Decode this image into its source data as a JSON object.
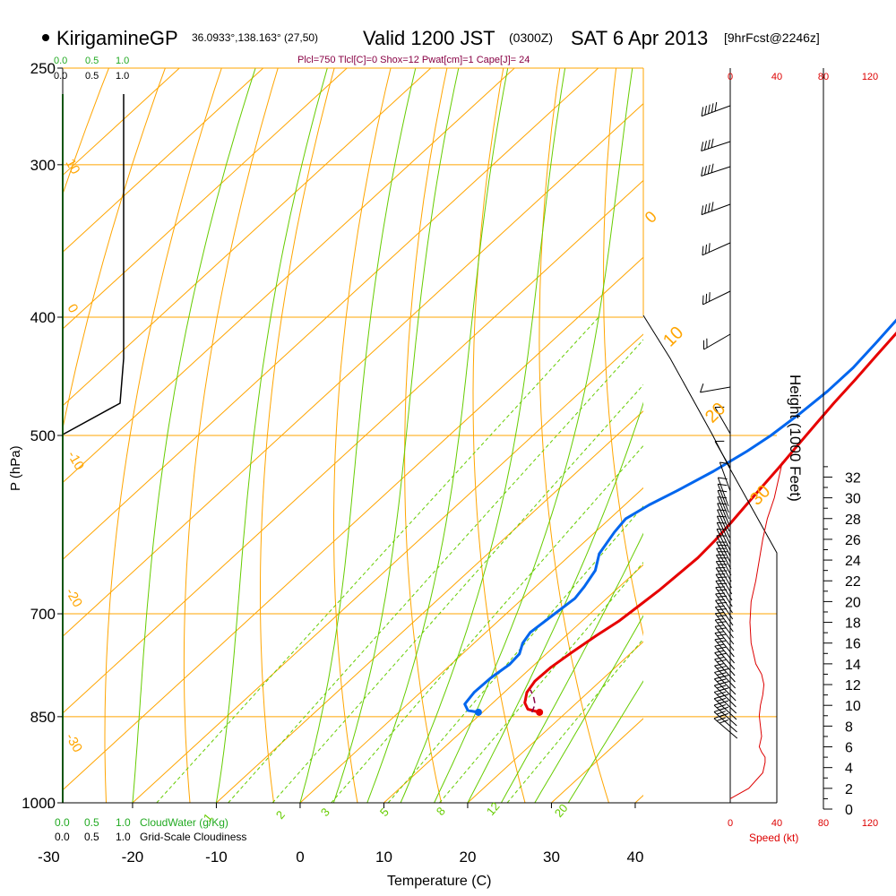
{
  "header": {
    "station": "KirigamineGP",
    "coords": "36.0933°,138.163° (27,50)",
    "valid": "Valid 1200 JST",
    "zulu": "(0300Z)",
    "date": "SAT 6 Apr 2013",
    "forecast": "[9hrFcst@2246z]",
    "indices": "Plcl=750 Tlcl[C]=0 Shox=12 Pwat[cm]=1 Cape[J]= 24"
  },
  "colors": {
    "isobar": "#ffa500",
    "mixing": "#66cc00",
    "temperature": "#e60000",
    "dewpoint": "#0066ee",
    "wind": "#000000",
    "speed": "#dd0000",
    "parcel": "#880044",
    "cloud": "#22aa22"
  },
  "chart_data": {
    "type": "line",
    "title": "KirigamineGP Valid 1200 JST SAT 6 Apr 2013",
    "xlabel": "Temperature (C)",
    "ylabel": "P (hPa)",
    "y2label": "Height (1000 Feet)",
    "x_ticks": [
      "-30",
      "-20",
      "-10",
      "0",
      "10",
      "20",
      "30",
      "40"
    ],
    "p_ticks": [
      "250",
      "300",
      "400",
      "500",
      "700",
      "850",
      "1000"
    ],
    "height_ticks": [
      "0",
      "2",
      "4",
      "6",
      "8",
      "10",
      "12",
      "14",
      "16",
      "18",
      "20",
      "22",
      "24",
      "26",
      "28",
      "30",
      "32"
    ],
    "isotherm_labels": [
      "10",
      "0",
      "-10",
      "-20",
      "-30",
      "0",
      "10",
      "20",
      "30"
    ],
    "mixing_ratio_labels": [
      "1",
      "2",
      "3",
      "5",
      "8",
      "12",
      "20"
    ],
    "cloud_scale_top": [
      "0.0",
      "0.5",
      "1.0"
    ],
    "cloud_scale_top2": [
      "0.0",
      "0.5",
      "1.0"
    ],
    "cloud_scale_bottom": [
      "0.0",
      "0.5",
      "1.0"
    ],
    "cloud_scale_bottom2": [
      "0.0",
      "0.5",
      "1.0"
    ],
    "cloudwater_label": "CloudWater (g/Kg)",
    "cloudiness_label": "Grid-Scale Cloudiness",
    "speed_ticks_top": [
      "0",
      "40",
      "80",
      "120"
    ],
    "speed_ticks_bottom": [
      "0",
      "40",
      "80",
      "120"
    ],
    "speed_label": "Speed (kt)",
    "series": [
      {
        "name": "Temperature",
        "points": [
          [
            16.8,
            843
          ],
          [
            15,
            838
          ],
          [
            13.8,
            828
          ],
          [
            12.7,
            812
          ],
          [
            12.2,
            795
          ],
          [
            12.3,
            775
          ],
          [
            12.8,
            755
          ],
          [
            13.6,
            730
          ],
          [
            14.4,
            710
          ],
          [
            14.8,
            690
          ],
          [
            15.2,
            670
          ],
          [
            15.4,
            650
          ],
          [
            15.6,
            630
          ],
          [
            15.4,
            610
          ],
          [
            15,
            590
          ],
          [
            14.5,
            570
          ],
          [
            14,
            550
          ],
          [
            13.5,
            530
          ],
          [
            12.9,
            510
          ],
          [
            12.3,
            490
          ],
          [
            11.7,
            470
          ],
          [
            11.2,
            450
          ],
          [
            10.6,
            430
          ],
          [
            10,
            410
          ],
          [
            9.2,
            390
          ],
          [
            8.4,
            370
          ],
          [
            7.6,
            350
          ],
          [
            6.6,
            330
          ],
          [
            5.4,
            310
          ],
          [
            4.4,
            300
          ],
          [
            3,
            285
          ],
          [
            1.6,
            270
          ],
          [
            0.4,
            260
          ]
        ]
      },
      {
        "name": "Dewpoint",
        "points": [
          [
            9.5,
            843
          ],
          [
            8,
            840
          ],
          [
            6.8,
            830
          ],
          [
            6.4,
            812
          ],
          [
            6.5,
            790
          ],
          [
            7,
            770
          ],
          [
            6.8,
            755
          ],
          [
            5.8,
            740
          ],
          [
            5.3,
            725
          ],
          [
            5.8,
            700
          ],
          [
            6.2,
            680
          ],
          [
            5.8,
            665
          ],
          [
            5,
            645
          ],
          [
            3.3,
            625
          ],
          [
            2.3,
            600
          ],
          [
            1.9,
            585
          ],
          [
            2.9,
            570
          ],
          [
            4.4,
            555
          ],
          [
            6.2,
            535
          ],
          [
            7.6,
            515
          ],
          [
            8.4,
            500
          ],
          [
            9,
            480
          ],
          [
            9.4,
            460
          ],
          [
            9.4,
            440
          ],
          [
            8.9,
            420
          ],
          [
            8.3,
            400
          ],
          [
            7.6,
            380
          ],
          [
            6.4,
            360
          ],
          [
            4.9,
            340
          ],
          [
            3.6,
            320
          ],
          [
            2.3,
            300
          ],
          [
            1,
            285
          ],
          [
            -1.2,
            270
          ],
          [
            -2.4,
            260
          ]
        ]
      },
      {
        "name": "Parcel",
        "points": [
          [
            15.9,
            843
          ],
          [
            15.2,
            830
          ],
          [
            14.2,
            820
          ],
          [
            12.8,
            808
          ]
        ]
      }
    ],
    "speed_points_kt": [
      [
        1,
        0
      ],
      [
        2,
        16
      ],
      [
        3.5,
        28
      ],
      [
        4.5,
        30
      ],
      [
        5,
        30
      ],
      [
        5.5,
        27
      ],
      [
        6,
        25
      ],
      [
        6.5,
        26
      ],
      [
        7,
        27
      ],
      [
        8,
        26
      ],
      [
        9,
        25
      ],
      [
        10,
        26
      ],
      [
        11,
        28
      ],
      [
        12,
        29
      ],
      [
        13,
        27
      ],
      [
        14,
        22
      ],
      [
        16,
        18
      ],
      [
        18,
        17
      ],
      [
        20,
        18
      ],
      [
        22,
        22
      ],
      [
        24,
        25
      ],
      [
        26,
        28
      ],
      [
        28,
        32
      ],
      [
        30,
        38
      ],
      [
        32,
        42
      ],
      [
        33.5,
        45
      ]
    ]
  }
}
